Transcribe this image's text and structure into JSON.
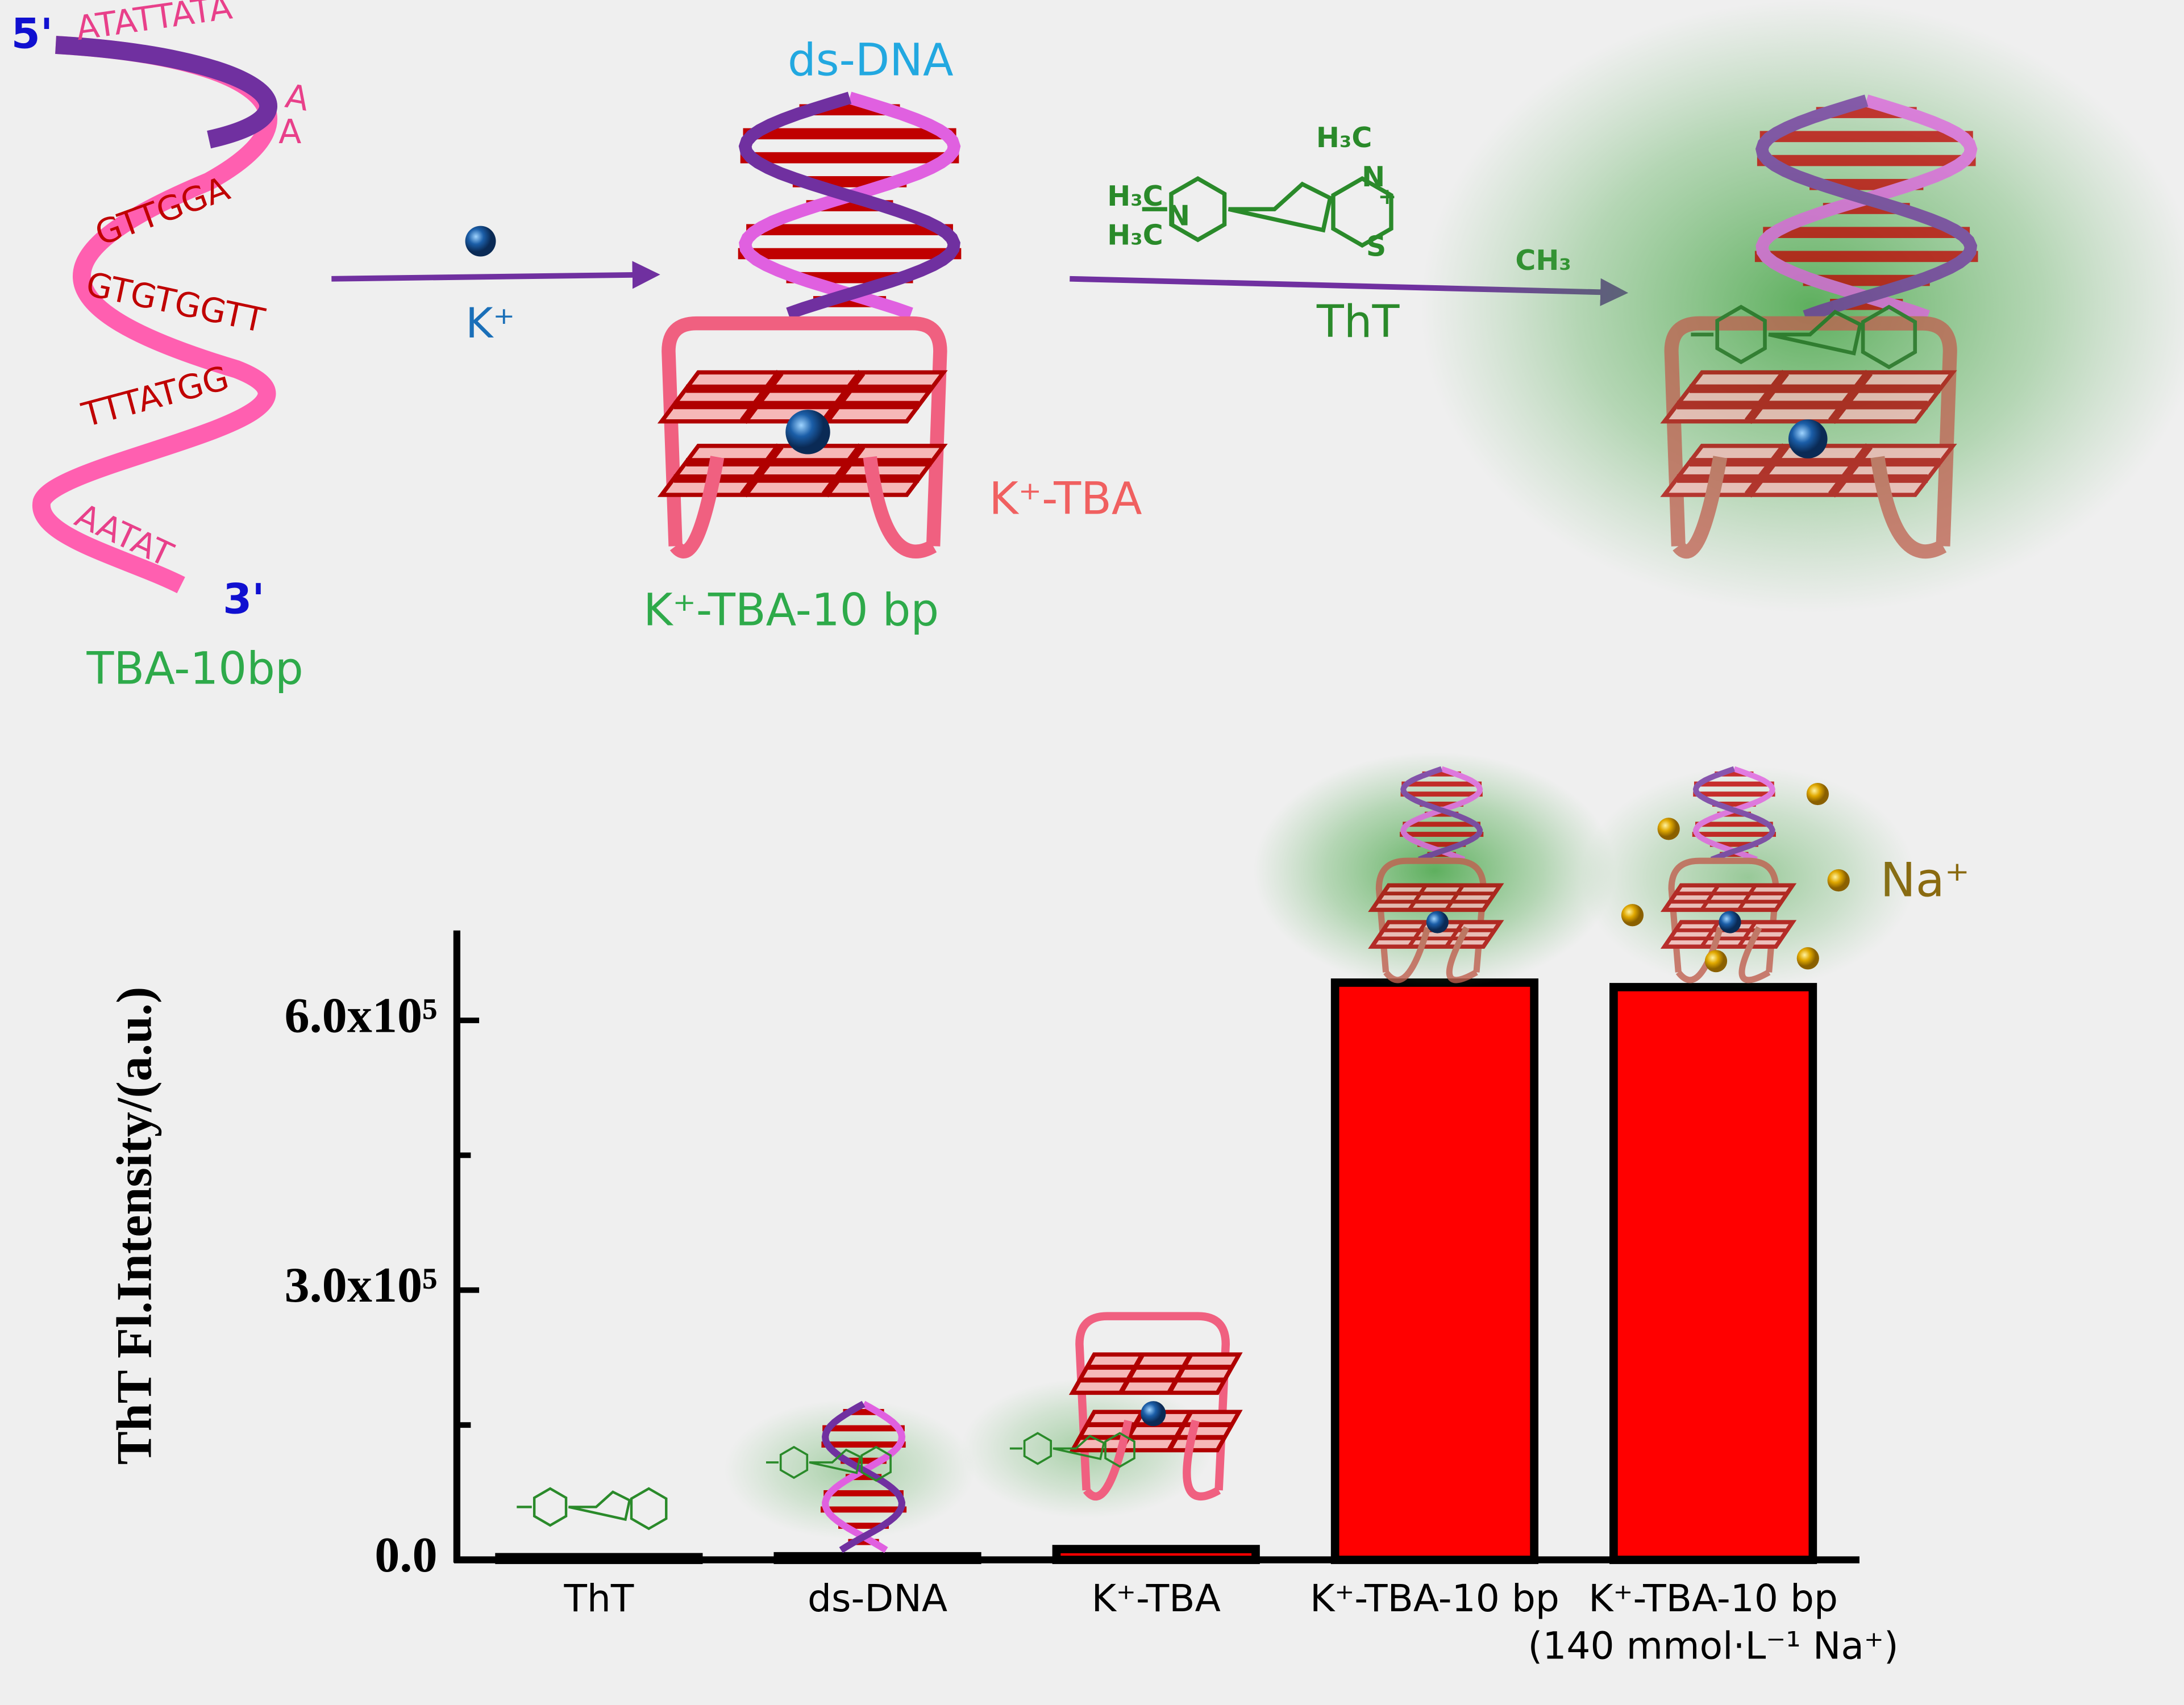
{
  "diagram": {
    "strand_5": "5'",
    "strand_3": "3'",
    "strand_label": "TBA-10bp",
    "sequence": [
      "ATATTATA",
      "A",
      "A",
      "GTTGGA",
      "GTGTGGTT",
      "TTTATGG",
      "AATAT"
    ],
    "ion": "K⁺",
    "dsdna": "ds-DNA",
    "quad_label": "K⁺-TBA",
    "complex_label": "K⁺-TBA-10 bp",
    "dye": "ThT",
    "dye_atoms": [
      "H₃C",
      "H₃C",
      "N",
      "H₃C",
      "N",
      "+",
      "S",
      "CH₃"
    ],
    "sodium": "Na⁺"
  },
  "chart_data": {
    "type": "bar",
    "ylabel": "ThT Fl.Intensity/(a.u.)",
    "categories": [
      "ThT",
      "ds-DNA",
      "K⁺-TBA",
      "K⁺-TBA-10 bp",
      "K⁺-TBA-10 bp\n(140 mmol·L⁻¹ Na⁺)"
    ],
    "values": [
      3000,
      4000,
      12000,
      642000,
      637000
    ],
    "color": "#ff0000",
    "ylim": [
      0,
      700000
    ],
    "yticks": [
      {
        "value": 0,
        "label": "0.0"
      },
      {
        "value": 300000,
        "label": "3.0x10⁵"
      },
      {
        "value": 600000,
        "label": "6.0x10⁵"
      }
    ],
    "minor_yticks": [
      150000,
      450000
    ],
    "grid": false
  }
}
